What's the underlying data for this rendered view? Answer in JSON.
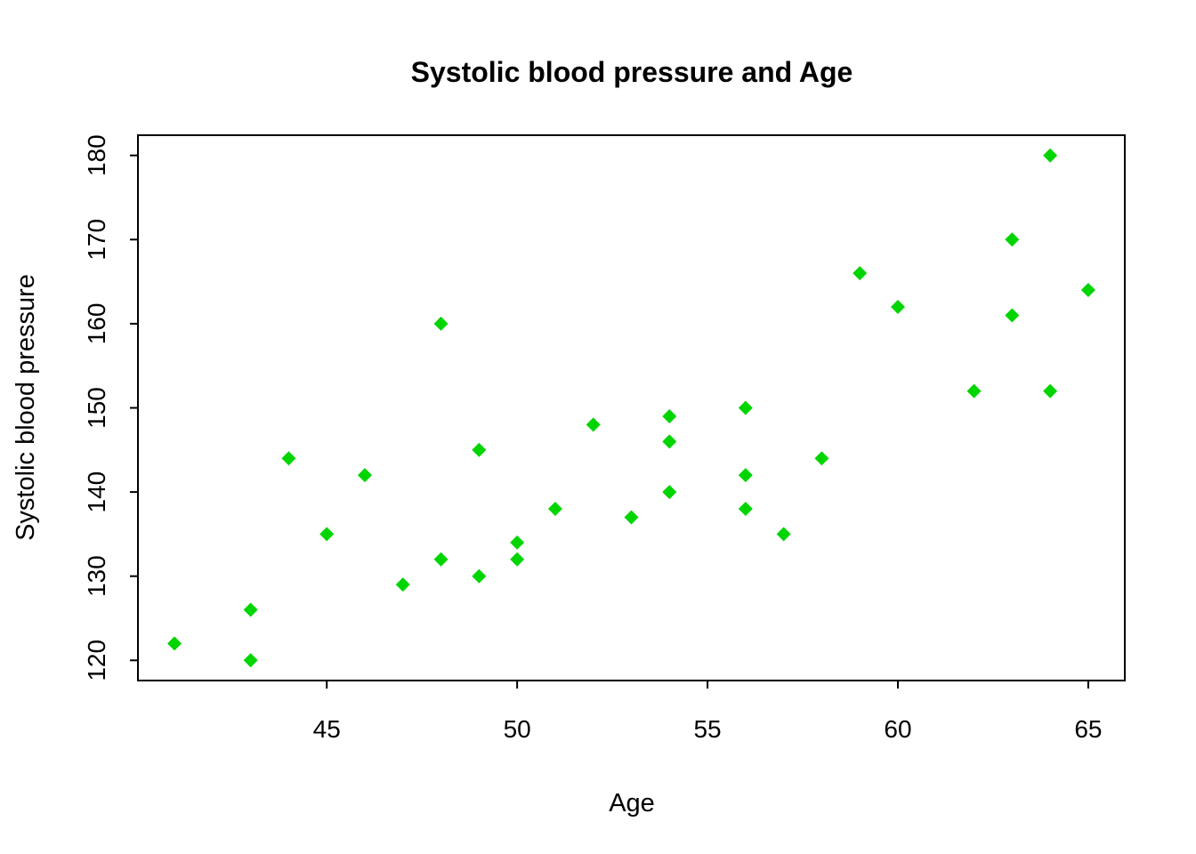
{
  "chart_data": {
    "type": "scatter",
    "title": "Systolic blood pressure and Age",
    "xlabel": "Age",
    "ylabel": "Systolic blood pressure",
    "xlim": [
      40.04,
      65.96
    ],
    "ylim": [
      117.6,
      182.4
    ],
    "xticks": [
      45,
      50,
      55,
      60,
      65
    ],
    "yticks": [
      120,
      130,
      140,
      150,
      160,
      170,
      180
    ],
    "grid": false,
    "legend": "none",
    "marker": "diamond",
    "point_color": "#00D500",
    "axis_color": "#000000",
    "series": [
      {
        "name": "Systolic blood pressure",
        "x": [
          41,
          43,
          43,
          44,
          45,
          46,
          47,
          48,
          48,
          49,
          49,
          50,
          50,
          51,
          52,
          53,
          54,
          54,
          54,
          56,
          56,
          56,
          57,
          58,
          59,
          60,
          62,
          63,
          63,
          64,
          64,
          65
        ],
        "y": [
          122,
          126,
          120,
          144,
          135,
          142,
          129,
          160,
          132,
          145,
          130,
          134,
          132,
          138,
          148,
          137,
          149,
          146,
          140,
          150,
          142,
          138,
          135,
          144,
          166,
          162,
          152,
          170,
          161,
          180,
          152,
          164
        ]
      }
    ]
  }
}
